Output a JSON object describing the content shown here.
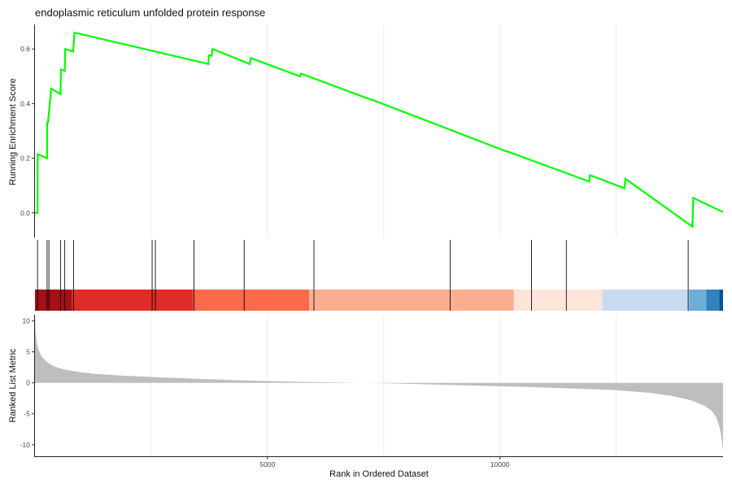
{
  "chart_data": [
    {
      "type": "line",
      "panel": "running-enrichment-score",
      "title": "endoplasmic reticulum unfolded protein response",
      "xlabel": "",
      "ylabel": "Running Enrichment Score",
      "xlim": [
        0,
        14800
      ],
      "ylim": [
        -0.09,
        0.69
      ],
      "yticks": [
        0.0,
        0.2,
        0.4,
        0.6
      ],
      "ytick_labels": [
        "0.0",
        "0.2",
        "0.4",
        "0.6"
      ],
      "grid": "vertical",
      "color": "#00ff00",
      "x": [
        0,
        55,
        60,
        60,
        260,
        260,
        280,
        350,
        350,
        550,
        560,
        640,
        650,
        820,
        850,
        3730,
        3740,
        3800,
        3820,
        4620,
        4640,
        5700,
        5720,
        7220,
        7240,
        10140,
        10160,
        11920,
        11940,
        12680,
        12700,
        14140,
        14160,
        14800
      ],
      "y": [
        0.0,
        0.0,
        0.215,
        0.215,
        0.2,
        0.33,
        0.33,
        0.455,
        0.455,
        0.435,
        0.525,
        0.52,
        0.6,
        0.59,
        0.66,
        0.545,
        0.577,
        0.575,
        0.6,
        0.545,
        0.567,
        0.5,
        0.51,
        0.415,
        0.415,
        0.225,
        0.225,
        0.115,
        0.138,
        0.09,
        0.125,
        -0.05,
        0.055,
        0.003
      ]
    },
    {
      "type": "bar",
      "panel": "hit-positions",
      "xlim": [
        0,
        14800
      ],
      "hits": [
        55,
        260,
        300,
        550,
        640,
        830,
        2520,
        2590,
        3420,
        4500,
        6000,
        8930,
        10680,
        11430,
        14050
      ],
      "color_bands": [
        {
          "start": 0,
          "end": 800,
          "color": "#a50f15"
        },
        {
          "start": 800,
          "end": 3400,
          "color": "#de2d26"
        },
        {
          "start": 3400,
          "end": 5900,
          "color": "#fb6a4a"
        },
        {
          "start": 5900,
          "end": 10300,
          "color": "#fcae91"
        },
        {
          "start": 10300,
          "end": 12200,
          "color": "#fee5d9"
        },
        {
          "start": 12200,
          "end": 14070,
          "color": "#c6dbef"
        },
        {
          "start": 14070,
          "end": 14440,
          "color": "#6baed6"
        },
        {
          "start": 14440,
          "end": 14720,
          "color": "#3182bd"
        },
        {
          "start": 14720,
          "end": 14800,
          "color": "#08519c"
        }
      ]
    },
    {
      "type": "area",
      "panel": "ranked-list-metric",
      "xlabel": "Rank in Ordered Dataset",
      "ylabel": "Ranked List Metric",
      "xlim": [
        0,
        14800
      ],
      "ylim": [
        -12,
        11
      ],
      "xticks": [
        5000,
        10000
      ],
      "xtick_labels": [
        "5000",
        "10000"
      ],
      "yticks": [
        10,
        5,
        0,
        -5,
        -10
      ],
      "ytick_labels": [
        "10",
        "5",
        "0",
        "-5",
        "-10"
      ],
      "color": "#bebebe",
      "x": [
        0,
        15,
        40,
        80,
        150,
        250,
        400,
        600,
        900,
        1300,
        1800,
        2500,
        3500,
        4500,
        5500,
        6500,
        7000,
        7500,
        8500,
        9500,
        10500,
        11500,
        12500,
        13200,
        13700,
        14100,
        14400,
        14550,
        14650,
        14720,
        14760,
        14800
      ],
      "y": [
        10.5,
        8.0,
        6.5,
        5.2,
        4.2,
        3.4,
        2.7,
        2.2,
        1.8,
        1.45,
        1.2,
        0.95,
        0.65,
        0.4,
        0.2,
        0.05,
        0.0,
        -0.05,
        -0.25,
        -0.45,
        -0.65,
        -0.9,
        -1.2,
        -1.6,
        -2.1,
        -2.8,
        -3.7,
        -4.5,
        -5.5,
        -7.0,
        -8.5,
        -11.0
      ]
    }
  ]
}
